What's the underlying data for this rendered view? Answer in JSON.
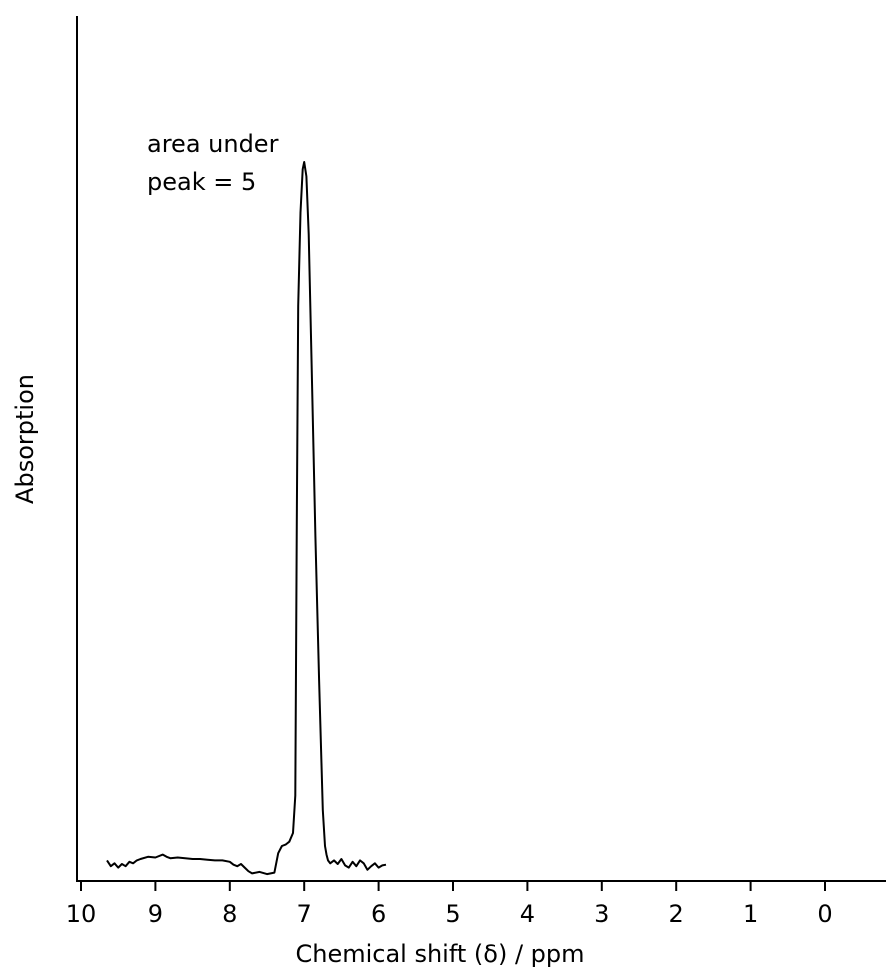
{
  "chart_data": {
    "type": "line",
    "title": "",
    "xlabel": "Chemical shift (δ) / ppm",
    "ylabel": "Absorption",
    "xlim": [
      10,
      0
    ],
    "x_reversed": true,
    "ylim": [
      0,
      100
    ],
    "grid": false,
    "legend": "none",
    "x_ticks": [
      10,
      9,
      8,
      7,
      6,
      5,
      4,
      3,
      2,
      1,
      0
    ],
    "tick_labels": [
      "10",
      "9",
      "8",
      "7",
      "6",
      "5",
      "4",
      "3",
      "2",
      "1",
      "0"
    ],
    "annotations": [
      {
        "text_lines": [
          "area under",
          "peak = 5"
        ],
        "x": 9.2,
        "y": 90
      }
    ],
    "series": [
      {
        "x": [
          9.65,
          9.6,
          9.55,
          9.5,
          9.45,
          9.4,
          9.35,
          9.3,
          9.25,
          9.2,
          9.1,
          9.0,
          8.9,
          8.85,
          8.8,
          8.7,
          8.6,
          8.5,
          8.4,
          8.3,
          8.2,
          8.1,
          8.0,
          7.95,
          7.9,
          7.85,
          7.8,
          7.75,
          7.7,
          7.6,
          7.5,
          7.4,
          7.35,
          7.3,
          7.25,
          7.2,
          7.15,
          7.12,
          7.1,
          7.08,
          7.05,
          7.02,
          7.0,
          6.97,
          6.94,
          6.9,
          6.85,
          6.8,
          6.75,
          6.72,
          6.7,
          6.68,
          6.65,
          6.6,
          6.55,
          6.5,
          6.45,
          6.4,
          6.35,
          6.3,
          6.25,
          6.2,
          6.15,
          6.1,
          6.05,
          6.0,
          5.95,
          5.9
        ],
        "y": [
          3.0,
          2.2,
          2.6,
          2.0,
          2.5,
          2.2,
          2.8,
          2.6,
          3.0,
          3.2,
          3.5,
          3.4,
          3.8,
          3.5,
          3.3,
          3.4,
          3.3,
          3.2,
          3.2,
          3.1,
          3.0,
          3.0,
          2.8,
          2.4,
          2.2,
          2.5,
          2.0,
          1.5,
          1.2,
          1.4,
          1.1,
          1.3,
          4.0,
          5.0,
          5.2,
          5.6,
          6.8,
          12.0,
          50.0,
          80.0,
          93.0,
          99.0,
          100.0,
          98.0,
          90.0,
          72.0,
          48.0,
          28.0,
          10.0,
          5.0,
          3.8,
          3.0,
          2.6,
          3.0,
          2.5,
          3.2,
          2.3,
          2.0,
          2.8,
          2.2,
          3.0,
          2.6,
          1.7,
          2.2,
          2.6,
          2.0,
          2.3,
          2.4
        ]
      }
    ]
  }
}
